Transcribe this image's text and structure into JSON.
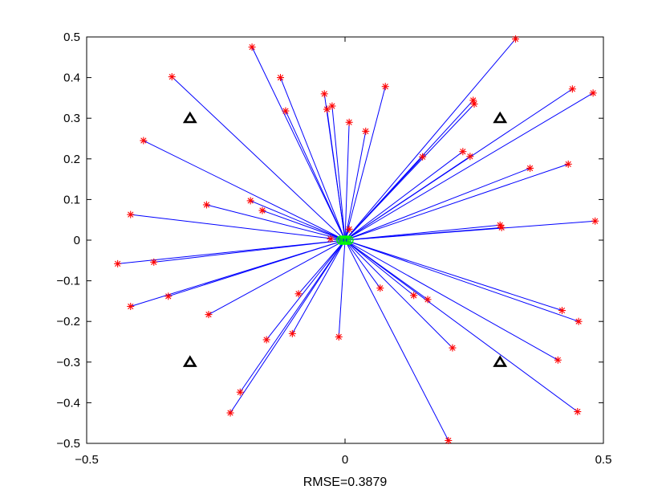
{
  "chart_data": {
    "type": "scatter",
    "title": "",
    "xlabel": "RMSE=0.3879",
    "ylabel": "",
    "xlim": [
      -0.5,
      0.5
    ],
    "ylim": [
      -0.5,
      0.5
    ],
    "x_ticks": [
      -0.5,
      0,
      0.5
    ],
    "x_tick_labels": [
      "−0.5",
      "0",
      "0.5"
    ],
    "y_ticks": [
      -0.5,
      -0.4,
      -0.3,
      -0.2,
      -0.1,
      0,
      0.1,
      0.2,
      0.3,
      0.4,
      0.5
    ],
    "y_tick_labels": [
      "−0.5",
      "−0.4",
      "−0.3",
      "−0.2",
      "−0.1",
      "0",
      "0.1",
      "0.2",
      "0.3",
      "0.4",
      "0.5"
    ],
    "grid": false,
    "legend": "none",
    "colors": {
      "points": "#ff0000",
      "lines": "#0000ff",
      "estimates": "#00ff00",
      "anchors": "#000000",
      "axes": "#000000"
    },
    "anchors": [
      {
        "x": -0.3,
        "y": 0.3
      },
      {
        "x": 0.3,
        "y": 0.3
      },
      {
        "x": -0.3,
        "y": -0.3
      },
      {
        "x": 0.3,
        "y": -0.3
      }
    ],
    "estimates_center": {
      "x": 0.0,
      "y": 0.0
    },
    "points": [
      {
        "x": -0.18,
        "y": 0.475
      },
      {
        "x": -0.335,
        "y": 0.402
      },
      {
        "x": -0.125,
        "y": 0.4
      },
      {
        "x": -0.115,
        "y": 0.318
      },
      {
        "x": -0.04,
        "y": 0.36
      },
      {
        "x": -0.035,
        "y": 0.322
      },
      {
        "x": -0.025,
        "y": 0.33
      },
      {
        "x": 0.008,
        "y": 0.29
      },
      {
        "x": 0.04,
        "y": 0.268
      },
      {
        "x": 0.078,
        "y": 0.378
      },
      {
        "x": 0.33,
        "y": 0.495
      },
      {
        "x": 0.248,
        "y": 0.344
      },
      {
        "x": 0.25,
        "y": 0.335
      },
      {
        "x": 0.44,
        "y": 0.372
      },
      {
        "x": 0.48,
        "y": 0.362
      },
      {
        "x": 0.15,
        "y": 0.205
      },
      {
        "x": 0.228,
        "y": 0.218
      },
      {
        "x": 0.242,
        "y": 0.206
      },
      {
        "x": 0.358,
        "y": 0.177
      },
      {
        "x": 0.432,
        "y": 0.187
      },
      {
        "x": -0.39,
        "y": 0.245
      },
      {
        "x": -0.268,
        "y": 0.087
      },
      {
        "x": -0.183,
        "y": 0.097
      },
      {
        "x": -0.16,
        "y": 0.073
      },
      {
        "x": -0.415,
        "y": 0.063
      },
      {
        "x": 0.3,
        "y": 0.037
      },
      {
        "x": 0.303,
        "y": 0.031
      },
      {
        "x": 0.484,
        "y": 0.047
      },
      {
        "x": -0.028,
        "y": 0.003
      },
      {
        "x": 0.008,
        "y": 0.027
      },
      {
        "x": -0.44,
        "y": -0.058
      },
      {
        "x": -0.37,
        "y": -0.054
      },
      {
        "x": -0.415,
        "y": -0.163
      },
      {
        "x": -0.342,
        "y": -0.138
      },
      {
        "x": -0.264,
        "y": -0.183
      },
      {
        "x": -0.09,
        "y": -0.132
      },
      {
        "x": 0.068,
        "y": -0.118
      },
      {
        "x": 0.133,
        "y": -0.136
      },
      {
        "x": 0.16,
        "y": -0.146
      },
      {
        "x": 0.42,
        "y": -0.173
      },
      {
        "x": 0.452,
        "y": -0.2
      },
      {
        "x": -0.152,
        "y": -0.245
      },
      {
        "x": -0.102,
        "y": -0.23
      },
      {
        "x": -0.012,
        "y": -0.238
      },
      {
        "x": 0.208,
        "y": -0.265
      },
      {
        "x": 0.412,
        "y": -0.295
      },
      {
        "x": -0.203,
        "y": -0.374
      },
      {
        "x": -0.222,
        "y": -0.425
      },
      {
        "x": 0.45,
        "y": -0.422
      },
      {
        "x": 0.2,
        "y": -0.493
      }
    ]
  }
}
